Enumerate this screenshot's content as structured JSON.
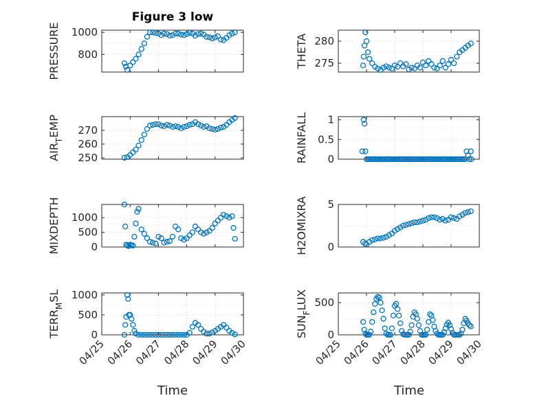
{
  "figure": {
    "title": "Figure 3 low",
    "xlabel": "Time"
  },
  "style": {
    "marker_color": "#0072BD",
    "axis_color": "#262626",
    "grid_color": "#cfcfcf"
  },
  "chart_data": [
    {
      "type": "scatter",
      "ylabel": "PRESSURE",
      "ylabel_sub": "",
      "ylim": [
        640,
        1020
      ],
      "yticks": [
        800,
        1000
      ],
      "xlim": [
        0,
        5
      ],
      "xticks": [
        0,
        1,
        2,
        3,
        4,
        5
      ],
      "xticklabels": [
        "04/25",
        "04/26",
        "04/27",
        "04/28",
        "04/29",
        "04/30"
      ],
      "x": [
        0.8,
        0.85,
        0.9,
        1.0,
        1.1,
        1.2,
        1.3,
        1.4,
        1.5,
        1.6,
        1.7,
        1.8,
        1.9,
        2.0,
        2.1,
        2.2,
        2.3,
        2.4,
        2.5,
        2.6,
        2.7,
        2.8,
        2.9,
        3.0,
        3.1,
        3.2,
        3.3,
        3.4,
        3.5,
        3.6,
        3.7,
        3.8,
        3.9,
        4.0,
        4.1,
        4.2,
        4.3,
        4.4,
        4.5,
        4.6,
        4.7
      ],
      "y": [
        720,
        690,
        660,
        700,
        730,
        760,
        800,
        850,
        900,
        960,
        1000,
        1000,
        995,
        990,
        975,
        990,
        985,
        970,
        975,
        990,
        990,
        980,
        975,
        985,
        995,
        990,
        970,
        985,
        990,
        980,
        960,
        955,
        945,
        955,
        965,
        935,
        930,
        950,
        975,
        990,
        1000
      ]
    },
    {
      "type": "scatter",
      "ylabel": "THETA",
      "ylabel_sub": "",
      "ylim": [
        273,
        282.5
      ],
      "yticks": [
        275,
        280
      ],
      "xlim": [
        0,
        5
      ],
      "xticks": [
        0,
        1,
        2,
        3,
        4,
        5
      ],
      "xticklabels": [
        "04/25",
        "04/26",
        "04/27",
        "04/28",
        "04/29",
        "04/30"
      ],
      "x": [
        0.88,
        0.9,
        0.93,
        0.96,
        1.0,
        1.05,
        1.1,
        1.2,
        1.3,
        1.4,
        1.5,
        1.6,
        1.7,
        1.8,
        1.9,
        2.0,
        2.1,
        2.2,
        2.3,
        2.4,
        2.5,
        2.6,
        2.7,
        2.8,
        2.9,
        3.0,
        3.1,
        3.2,
        3.3,
        3.4,
        3.5,
        3.6,
        3.7,
        3.8,
        3.9,
        4.0,
        4.1,
        4.2,
        4.3,
        4.4,
        4.5,
        4.6,
        4.7
      ],
      "y": [
        274.5,
        276.5,
        279,
        282,
        280,
        277.5,
        276,
        275,
        274.2,
        273.8,
        273.5,
        274,
        274.3,
        274,
        273.8,
        274.5,
        274.2,
        275,
        274.3,
        274.8,
        273.6,
        274,
        273.8,
        274.5,
        274,
        275.2,
        274.5,
        275.5,
        274.8,
        274,
        273.8,
        274.5,
        275.5,
        274,
        274.8,
        275.8,
        275,
        276.5,
        277.5,
        278,
        278.5,
        279,
        279.5
      ]
    },
    {
      "type": "scatter",
      "ylabel": "AIR",
      "ylabel_sub": "T",
      "ylabel_suffix": "EMP",
      "ylim": [
        249,
        280
      ],
      "yticks": [
        250,
        260,
        270
      ],
      "xlim": [
        0,
        5
      ],
      "xticks": [
        0,
        1,
        2,
        3,
        4,
        5
      ],
      "xticklabels": [
        "04/25",
        "04/26",
        "04/27",
        "04/28",
        "04/29",
        "04/30"
      ],
      "x": [
        0.8,
        0.9,
        1.0,
        1.1,
        1.2,
        1.3,
        1.4,
        1.5,
        1.6,
        1.7,
        1.8,
        1.9,
        2.0,
        2.1,
        2.2,
        2.3,
        2.4,
        2.5,
        2.6,
        2.7,
        2.8,
        2.9,
        3.0,
        3.1,
        3.2,
        3.3,
        3.4,
        3.5,
        3.6,
        3.7,
        3.8,
        3.9,
        4.0,
        4.1,
        4.2,
        4.3,
        4.4,
        4.5,
        4.6,
        4.7
      ],
      "y": [
        250,
        250.5,
        252,
        254,
        256,
        259,
        263,
        267,
        271,
        273.5,
        274,
        274.5,
        274.5,
        273.5,
        273,
        274,
        273.5,
        272.5,
        273,
        272.5,
        271.5,
        272.5,
        273,
        274,
        274.5,
        276,
        274.5,
        273.5,
        272.5,
        273,
        271.5,
        271,
        270.5,
        271,
        272,
        272.5,
        274,
        276,
        277.5,
        279
      ]
    },
    {
      "type": "scatter",
      "ylabel": "RAINFALL",
      "ylabel_sub": "",
      "ylim": [
        0,
        1.08
      ],
      "yticks": [
        0,
        0.5,
        1
      ],
      "xlim": [
        0,
        5
      ],
      "xticks": [
        0,
        1,
        2,
        3,
        4,
        5
      ],
      "xticklabels": [
        "04/25",
        "04/26",
        "04/27",
        "04/28",
        "04/29",
        "04/30"
      ],
      "x": [
        0.85,
        0.9,
        0.93,
        0.96,
        1.0,
        1.05,
        1.1,
        1.15,
        1.2,
        1.25,
        1.3,
        1.35,
        1.4,
        1.45,
        1.5,
        1.55,
        1.6,
        1.65,
        1.7,
        1.75,
        1.8,
        1.85,
        1.9,
        1.95,
        2.0,
        2.05,
        2.1,
        2.15,
        2.2,
        2.25,
        2.3,
        2.35,
        2.4,
        2.45,
        2.5,
        2.55,
        2.6,
        2.65,
        2.7,
        2.75,
        2.8,
        2.85,
        2.9,
        2.95,
        3.0,
        3.05,
        3.1,
        3.15,
        3.2,
        3.25,
        3.3,
        3.35,
        3.4,
        3.45,
        3.5,
        3.55,
        3.6,
        3.65,
        3.7,
        3.75,
        3.8,
        3.85,
        3.9,
        3.95,
        4.0,
        4.05,
        4.1,
        4.15,
        4.2,
        4.25,
        4.3,
        4.35,
        4.4,
        4.45,
        4.5,
        4.55,
        4.6,
        4.65,
        4.7,
        4.72
      ],
      "y": [
        0.2,
        1.0,
        0.9,
        0.2,
        0,
        0,
        0,
        0,
        0,
        0,
        0,
        0,
        0,
        0,
        0,
        0,
        0,
        0,
        0,
        0,
        0,
        0,
        0,
        0,
        0,
        0,
        0,
        0,
        0,
        0,
        0,
        0,
        0,
        0,
        0,
        0,
        0,
        0,
        0,
        0,
        0,
        0,
        0,
        0,
        0,
        0,
        0,
        0,
        0,
        0,
        0,
        0,
        0,
        0,
        0,
        0,
        0,
        0,
        0,
        0,
        0,
        0,
        0,
        0,
        0,
        0,
        0,
        0,
        0,
        0,
        0,
        0,
        0,
        0,
        0,
        0.2,
        0.1,
        0,
        0.2,
        0
      ]
    },
    {
      "type": "scatter",
      "ylabel": "MIXDEPTH",
      "ylabel_sub": "",
      "ylim": [
        0,
        1450
      ],
      "yticks": [
        0,
        500,
        1000
      ],
      "xlim": [
        0,
        5
      ],
      "xticks": [
        0,
        1,
        2,
        3,
        4,
        5
      ],
      "xticklabels": [
        "04/25",
        "04/26",
        "04/27",
        "04/28",
        "04/29",
        "04/30"
      ],
      "x": [
        0.8,
        0.83,
        0.86,
        0.9,
        0.95,
        1.0,
        1.05,
        1.1,
        1.15,
        1.2,
        1.25,
        1.3,
        1.4,
        1.5,
        1.6,
        1.7,
        1.8,
        1.9,
        2.0,
        2.1,
        2.2,
        2.3,
        2.4,
        2.5,
        2.6,
        2.7,
        2.8,
        2.9,
        3.0,
        3.1,
        3.2,
        3.3,
        3.4,
        3.5,
        3.6,
        3.7,
        3.8,
        3.9,
        4.0,
        4.1,
        4.2,
        4.3,
        4.4,
        4.5,
        4.6,
        4.65,
        4.7
      ],
      "y": [
        1450,
        700,
        80,
        50,
        30,
        80,
        60,
        50,
        350,
        800,
        1200,
        1300,
        600,
        450,
        300,
        180,
        150,
        120,
        350,
        300,
        150,
        180,
        200,
        350,
        700,
        600,
        300,
        250,
        300,
        400,
        500,
        700,
        600,
        500,
        450,
        500,
        550,
        650,
        800,
        900,
        1000,
        1100,
        1050,
        1000,
        1050,
        650,
        280
      ]
    },
    {
      "type": "scatter",
      "ylabel": "H2OMIXRA",
      "ylabel_sub": "",
      "ylim": [
        0,
        5
      ],
      "yticks": [
        0,
        5
      ],
      "xlim": [
        0,
        5
      ],
      "xticks": [
        0,
        1,
        2,
        3,
        4,
        5
      ],
      "xticklabels": [
        "04/25",
        "04/26",
        "04/27",
        "04/28",
        "04/29",
        "04/30"
      ],
      "x": [
        0.88,
        0.95,
        1.0,
        1.1,
        1.2,
        1.3,
        1.4,
        1.5,
        1.6,
        1.7,
        1.8,
        1.9,
        2.0,
        2.1,
        2.2,
        2.3,
        2.4,
        2.5,
        2.6,
        2.7,
        2.8,
        2.9,
        3.0,
        3.1,
        3.2,
        3.3,
        3.4,
        3.5,
        3.6,
        3.7,
        3.8,
        3.9,
        4.0,
        4.1,
        4.2,
        4.3,
        4.4,
        4.5,
        4.6,
        4.7
      ],
      "y": [
        0.6,
        0.4,
        0.3,
        0.6,
        0.8,
        0.9,
        1.0,
        1.0,
        1.1,
        1.2,
        1.4,
        1.6,
        1.9,
        2.1,
        2.3,
        2.5,
        2.6,
        2.7,
        2.8,
        2.9,
        2.9,
        3.0,
        3.1,
        3.2,
        3.4,
        3.5,
        3.5,
        3.4,
        3.2,
        3.3,
        3.1,
        3.2,
        3.5,
        3.4,
        3.3,
        3.6,
        3.8,
        4.0,
        4.1,
        4.2
      ]
    },
    {
      "type": "scatter",
      "ylabel": "TERR",
      "ylabel_sub": "M",
      "ylabel_suffix": "SL",
      "ylim": [
        0,
        1050
      ],
      "yticks": [
        0,
        500,
        1000
      ],
      "xlim": [
        0,
        5
      ],
      "xticks": [
        0,
        1,
        2,
        3,
        4,
        5
      ],
      "xticklabels": [
        "04/25",
        "04/26",
        "04/27",
        "04/28",
        "04/29",
        "04/30"
      ],
      "x": [
        0.8,
        0.83,
        0.86,
        0.9,
        0.93,
        0.96,
        1.0,
        1.05,
        1.1,
        1.15,
        1.2,
        1.3,
        1.4,
        1.5,
        1.6,
        1.7,
        1.8,
        1.9,
        2.0,
        2.1,
        2.2,
        2.3,
        2.4,
        2.5,
        2.6,
        2.7,
        2.8,
        2.9,
        3.0,
        3.1,
        3.2,
        3.3,
        3.4,
        3.5,
        3.6,
        3.7,
        3.8,
        3.9,
        4.0,
        4.1,
        4.2,
        4.3,
        4.4,
        4.5,
        4.6,
        4.7
      ],
      "y": [
        0,
        250,
        450,
        1000,
        900,
        500,
        500,
        400,
        250,
        100,
        30,
        0,
        0,
        0,
        0,
        0,
        0,
        0,
        0,
        0,
        0,
        0,
        0,
        0,
        0,
        0,
        0,
        0,
        0,
        50,
        200,
        300,
        250,
        150,
        80,
        30,
        30,
        60,
        100,
        150,
        200,
        250,
        180,
        100,
        50,
        10
      ]
    },
    {
      "type": "scatter",
      "ylabel": "SUN",
      "ylabel_sub": "F",
      "ylabel_suffix": "LUX",
      "ylim": [
        0,
        650
      ],
      "yticks": [
        0,
        500
      ],
      "xlim": [
        0,
        5
      ],
      "xticks": [
        0,
        1,
        2,
        3,
        4,
        5
      ],
      "xticklabels": [
        "04/25",
        "04/26",
        "04/27",
        "04/28",
        "04/29",
        "04/30"
      ],
      "x": [
        0.88,
        0.92,
        0.96,
        1.0,
        1.05,
        1.1,
        1.15,
        1.2,
        1.25,
        1.3,
        1.35,
        1.4,
        1.45,
        1.5,
        1.55,
        1.6,
        1.65,
        1.7,
        1.75,
        1.8,
        1.85,
        1.9,
        1.95,
        2.0,
        2.05,
        2.1,
        2.15,
        2.2,
        2.25,
        2.3,
        2.35,
        2.4,
        2.45,
        2.5,
        2.55,
        2.6,
        2.65,
        2.7,
        2.75,
        2.8,
        2.85,
        2.9,
        2.95,
        3.0,
        3.05,
        3.1,
        3.15,
        3.2,
        3.25,
        3.3,
        3.35,
        3.4,
        3.45,
        3.5,
        3.55,
        3.6,
        3.65,
        3.7,
        3.75,
        3.8,
        3.85,
        3.9,
        3.95,
        4.0,
        4.05,
        4.1,
        4.15,
        4.2,
        4.25,
        4.3,
        4.35,
        4.4,
        4.45,
        4.5,
        4.55,
        4.6,
        4.65,
        4.7
      ],
      "y": [
        200,
        80,
        20,
        0,
        0,
        0,
        50,
        200,
        350,
        480,
        560,
        590,
        580,
        500,
        380,
        250,
        100,
        20,
        0,
        0,
        0,
        100,
        300,
        450,
        480,
        400,
        300,
        180,
        60,
        10,
        0,
        0,
        0,
        0,
        50,
        150,
        280,
        350,
        320,
        250,
        150,
        60,
        0,
        0,
        0,
        0,
        80,
        200,
        320,
        300,
        230,
        130,
        60,
        20,
        0,
        0,
        0,
        0,
        40,
        100,
        160,
        190,
        150,
        90,
        30,
        0,
        0,
        0,
        0,
        0,
        20,
        80,
        180,
        250,
        220,
        180,
        150,
        130
      ]
    }
  ]
}
